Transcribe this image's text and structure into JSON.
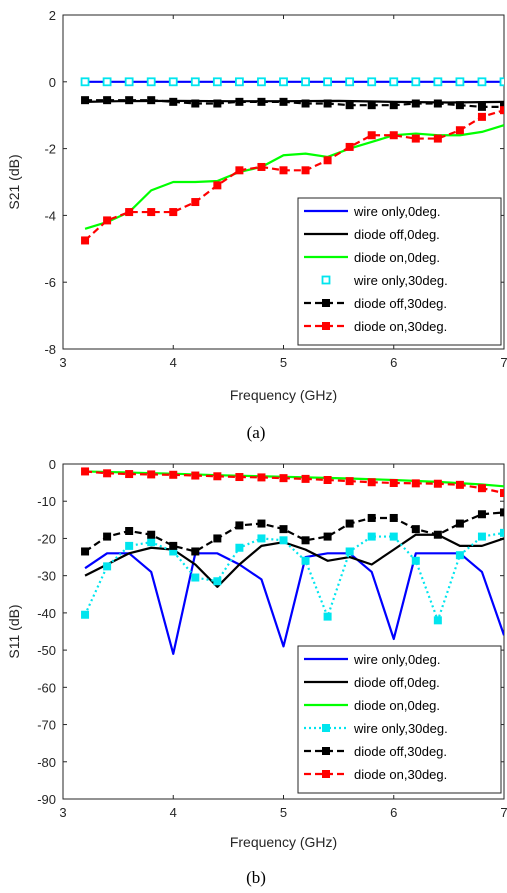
{
  "chart_data": [
    {
      "type": "line",
      "caption": "(a)",
      "xlabel": "Frequency (GHz)",
      "ylabel": "S21 (dB)",
      "xlim": [
        3,
        7
      ],
      "ylim": [
        -8,
        2
      ],
      "xticks": [
        "3",
        "4",
        "5",
        "6",
        "7"
      ],
      "yticks": [
        "2",
        "0",
        "-2",
        "-4",
        "-6",
        "-8"
      ],
      "grid": false,
      "legend_position": "bottom-right",
      "series": [
        {
          "name": "wire only,0deg.",
          "color": "#0000ff",
          "line": "solid",
          "marker": "none",
          "x": [
            3.2,
            7.0
          ],
          "y": [
            0,
            0
          ]
        },
        {
          "name": "diode off,0deg.",
          "color": "#000000",
          "line": "solid",
          "marker": "none",
          "x": [
            3.2,
            3.5,
            4.0,
            4.5,
            5.0,
            5.5,
            6.0,
            6.5,
            7.0
          ],
          "y": [
            -0.6,
            -0.58,
            -0.57,
            -0.58,
            -0.58,
            -0.57,
            -0.6,
            -0.62,
            -0.6
          ]
        },
        {
          "name": "diode on,0deg.",
          "color": "#00ff00",
          "line": "solid",
          "marker": "none",
          "x": [
            3.2,
            3.4,
            3.6,
            3.8,
            4.0,
            4.2,
            4.4,
            4.6,
            4.8,
            5.0,
            5.2,
            5.4,
            5.6,
            5.8,
            6.0,
            6.2,
            6.4,
            6.6,
            6.8,
            7.0
          ],
          "y": [
            -4.4,
            -4.2,
            -3.9,
            -3.25,
            -3.0,
            -3.0,
            -2.97,
            -2.7,
            -2.55,
            -2.2,
            -2.15,
            -2.25,
            -2.0,
            -1.8,
            -1.6,
            -1.55,
            -1.6,
            -1.6,
            -1.5,
            -1.3
          ]
        },
        {
          "name": "wire only,30deg.",
          "color": "#00e5ee",
          "line": "none",
          "marker": "square-open",
          "x": [
            3.2,
            3.4,
            3.6,
            3.8,
            4.0,
            4.2,
            4.4,
            4.6,
            4.8,
            5.0,
            5.2,
            5.4,
            5.6,
            5.8,
            6.0,
            6.2,
            6.4,
            6.6,
            6.8,
            7.0
          ],
          "y": [
            0,
            0,
            0,
            0,
            0,
            0,
            0,
            0,
            0,
            0,
            0,
            0,
            0,
            0,
            0,
            0,
            0,
            0,
            0,
            0
          ]
        },
        {
          "name": "diode off,30deg.",
          "color": "#000000",
          "line": "dashed",
          "marker": "square",
          "x": [
            3.2,
            3.4,
            3.6,
            3.8,
            4.0,
            4.2,
            4.4,
            4.6,
            4.8,
            5.0,
            5.2,
            5.4,
            5.6,
            5.8,
            6.0,
            6.2,
            6.4,
            6.6,
            6.8,
            7.0
          ],
          "y": [
            -0.55,
            -0.55,
            -0.55,
            -0.55,
            -0.6,
            -0.65,
            -0.65,
            -0.6,
            -0.6,
            -0.6,
            -0.65,
            -0.65,
            -0.7,
            -0.7,
            -0.7,
            -0.65,
            -0.65,
            -0.7,
            -0.75,
            -0.75
          ]
        },
        {
          "name": "diode on,30deg.",
          "color": "#ff0000",
          "line": "dashed",
          "marker": "square",
          "x": [
            3.2,
            3.4,
            3.6,
            3.8,
            4.0,
            4.2,
            4.4,
            4.6,
            4.8,
            5.0,
            5.2,
            5.4,
            5.6,
            5.8,
            6.0,
            6.2,
            6.4,
            6.6,
            6.8,
            7.0
          ],
          "y": [
            -4.75,
            -4.15,
            -3.9,
            -3.9,
            -3.9,
            -3.6,
            -3.1,
            -2.65,
            -2.55,
            -2.65,
            -2.65,
            -2.35,
            -1.95,
            -1.6,
            -1.6,
            -1.7,
            -1.7,
            -1.45,
            -1.05,
            -0.85
          ]
        }
      ]
    },
    {
      "type": "line",
      "caption": "(b)",
      "xlabel": "Frequency (GHz)",
      "ylabel": "S11 (dB)",
      "xlim": [
        3,
        7
      ],
      "ylim": [
        -90,
        0
      ],
      "xticks": [
        "3",
        "4",
        "5",
        "6",
        "7"
      ],
      "yticks": [
        "0",
        "-10",
        "-20",
        "-30",
        "-40",
        "-50",
        "-60",
        "-70",
        "-80",
        "-90"
      ],
      "grid": false,
      "legend_position": "bottom-right",
      "series": [
        {
          "name": "wire only,0deg.",
          "color": "#0000ff",
          "line": "solid",
          "marker": "none",
          "x": [
            3.2,
            3.4,
            3.6,
            3.8,
            4.0,
            4.2,
            4.4,
            4.6,
            4.8,
            5.0,
            5.2,
            5.4,
            5.6,
            5.8,
            6.0,
            6.2,
            6.4,
            6.6,
            6.8,
            7.0
          ],
          "y": [
            -28,
            -24,
            -24,
            -29,
            -51,
            -24,
            -24,
            -27,
            -31,
            -49,
            -25,
            -24,
            -24,
            -29,
            -47,
            -24,
            -24,
            -24,
            -29,
            -46
          ]
        },
        {
          "name": "diode off,0deg.",
          "color": "#000000",
          "line": "solid",
          "marker": "none",
          "x": [
            3.2,
            3.4,
            3.6,
            3.8,
            4.0,
            4.2,
            4.4,
            4.6,
            4.8,
            5.0,
            5.2,
            5.4,
            5.6,
            5.8,
            6.0,
            6.2,
            6.4,
            6.6,
            6.8,
            7.0
          ],
          "y": [
            -30,
            -27,
            -24,
            -22.5,
            -23,
            -27,
            -33,
            -27,
            -22,
            -21,
            -23,
            -26,
            -25,
            -27,
            -23,
            -19,
            -19,
            -22,
            -22,
            -20
          ]
        },
        {
          "name": "diode on,0deg.",
          "color": "#00ff00",
          "line": "solid",
          "marker": "none",
          "x": [
            3.2,
            3.6,
            4.0,
            4.4,
            4.8,
            5.2,
            5.6,
            6.0,
            6.4,
            6.8,
            7.0
          ],
          "y": [
            -2,
            -2.3,
            -2.6,
            -3,
            -3.3,
            -3.6,
            -3.9,
            -4.3,
            -4.8,
            -5.5,
            -6
          ]
        },
        {
          "name": "wire only,30deg.",
          "color": "#00e5ee",
          "line": "dotted",
          "marker": "square",
          "x": [
            3.2,
            3.4,
            3.6,
            3.8,
            4.0,
            4.2,
            4.4,
            4.6,
            4.8,
            5.0,
            5.2,
            5.4,
            5.6,
            5.8,
            6.0,
            6.2,
            6.4,
            6.6,
            6.8,
            7.0
          ],
          "y": [
            -40.5,
            -27.5,
            -22,
            -21,
            -23.5,
            -30.5,
            -31.5,
            -22.5,
            -20,
            -20.5,
            -26,
            -41,
            -23.5,
            -19.5,
            -19.5,
            -26,
            -42,
            -24.5,
            -19.5,
            -18.5
          ]
        },
        {
          "name": "diode off,30deg.",
          "color": "#000000",
          "line": "dashed",
          "marker": "square",
          "x": [
            3.2,
            3.4,
            3.6,
            3.8,
            4.0,
            4.2,
            4.4,
            4.6,
            4.8,
            5.0,
            5.2,
            5.4,
            5.6,
            5.8,
            6.0,
            6.2,
            6.4,
            6.6,
            6.8,
            7.0
          ],
          "y": [
            -23.5,
            -19.5,
            -18,
            -19,
            -22,
            -23.5,
            -20,
            -16.5,
            -16,
            -17.5,
            -20.5,
            -19.5,
            -16,
            -14.5,
            -14.5,
            -17.5,
            -19,
            -16,
            -13.5,
            -13
          ]
        },
        {
          "name": "diode on,30deg.",
          "color": "#ff0000",
          "line": "dashed",
          "marker": "square",
          "x": [
            3.2,
            3.4,
            3.6,
            3.8,
            4.0,
            4.2,
            4.4,
            4.6,
            4.8,
            5.0,
            5.2,
            5.4,
            5.6,
            5.8,
            6.0,
            6.2,
            6.4,
            6.6,
            6.8,
            7.0
          ],
          "y": [
            -2,
            -2.5,
            -2.7,
            -2.8,
            -2.9,
            -3.1,
            -3.3,
            -3.5,
            -3.6,
            -3.8,
            -4,
            -4.3,
            -4.6,
            -4.9,
            -5.1,
            -5.2,
            -5.3,
            -5.6,
            -6.5,
            -7.8
          ]
        }
      ]
    }
  ]
}
